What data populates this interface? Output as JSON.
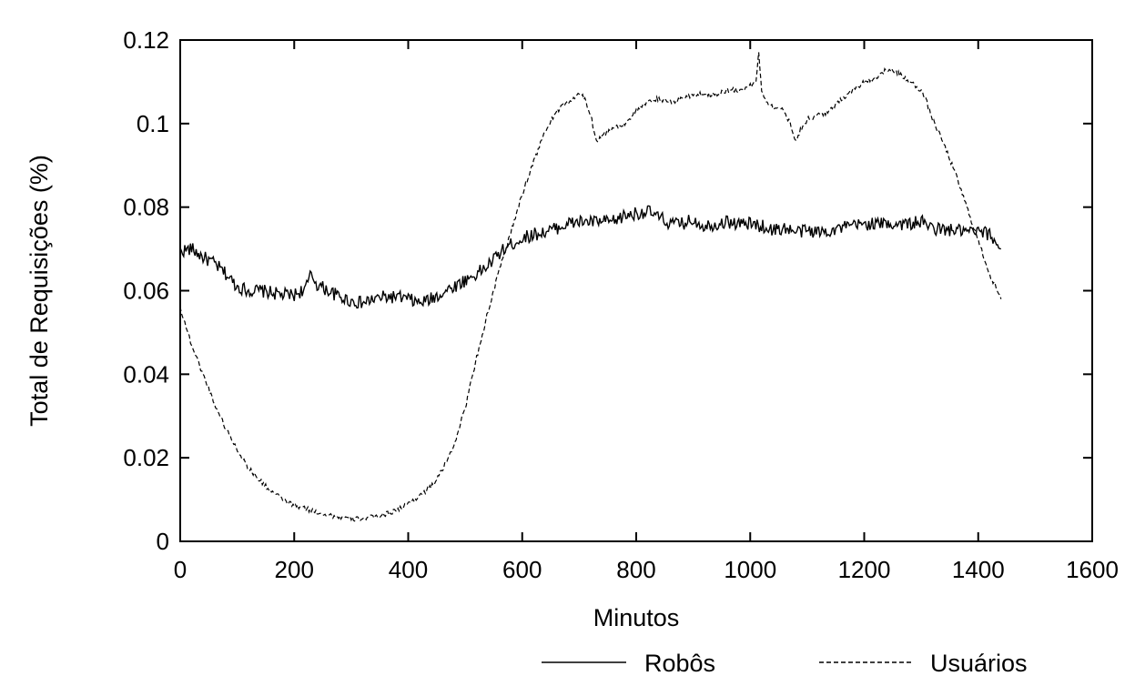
{
  "chart_data": {
    "type": "line",
    "xlabel": "Minutos",
    "ylabel": "Total de Requisições (%)",
    "xlim": [
      0,
      1600
    ],
    "ylim": [
      0,
      0.12
    ],
    "x_ticks": [
      0,
      200,
      400,
      600,
      800,
      1000,
      1200,
      1400,
      1600
    ],
    "x_tick_labels": [
      "0",
      "200",
      "400",
      "600",
      "800",
      "1000",
      "1200",
      "1400",
      "1600"
    ],
    "y_ticks": [
      0,
      0.02,
      0.04,
      0.06,
      0.08,
      0.1,
      0.12
    ],
    "y_tick_labels": [
      "0",
      "0.02",
      "0.04",
      "0.06",
      "0.08",
      "0.1",
      "0.12"
    ],
    "grid": false,
    "legend_position": "bottom",
    "series": [
      {
        "name": "Robôs",
        "style": "solid",
        "color": "#000000",
        "x": [
          0,
          20,
          40,
          60,
          80,
          100,
          120,
          140,
          160,
          180,
          200,
          220,
          230,
          240,
          260,
          280,
          300,
          320,
          340,
          360,
          380,
          400,
          420,
          440,
          460,
          480,
          500,
          520,
          540,
          560,
          580,
          600,
          620,
          640,
          660,
          680,
          700,
          720,
          740,
          760,
          780,
          800,
          820,
          840,
          860,
          880,
          900,
          920,
          940,
          960,
          980,
          1000,
          1020,
          1040,
          1060,
          1080,
          1100,
          1120,
          1140,
          1160,
          1180,
          1200,
          1220,
          1240,
          1260,
          1280,
          1300,
          1320,
          1340,
          1360,
          1380,
          1400,
          1420,
          1440
        ],
        "values": [
          0.0695,
          0.07,
          0.068,
          0.0665,
          0.064,
          0.061,
          0.06,
          0.06,
          0.0595,
          0.059,
          0.059,
          0.0605,
          0.064,
          0.0615,
          0.06,
          0.0585,
          0.0575,
          0.057,
          0.058,
          0.0585,
          0.0585,
          0.058,
          0.057,
          0.058,
          0.0595,
          0.061,
          0.0625,
          0.064,
          0.066,
          0.069,
          0.071,
          0.0725,
          0.0735,
          0.074,
          0.075,
          0.076,
          0.0765,
          0.0765,
          0.0765,
          0.0765,
          0.078,
          0.0785,
          0.079,
          0.0775,
          0.076,
          0.076,
          0.077,
          0.0755,
          0.076,
          0.0765,
          0.076,
          0.076,
          0.0755,
          0.0745,
          0.075,
          0.074,
          0.0745,
          0.074,
          0.0745,
          0.075,
          0.0755,
          0.076,
          0.076,
          0.076,
          0.076,
          0.076,
          0.0765,
          0.075,
          0.0745,
          0.0745,
          0.074,
          0.074,
          0.0735,
          0.07
        ]
      },
      {
        "name": "Usuários",
        "style": "dashed",
        "color": "#000000",
        "x": [
          0,
          20,
          40,
          60,
          80,
          100,
          120,
          140,
          160,
          180,
          200,
          220,
          240,
          260,
          280,
          300,
          320,
          340,
          360,
          380,
          400,
          420,
          440,
          460,
          480,
          500,
          520,
          540,
          560,
          580,
          600,
          620,
          640,
          660,
          680,
          700,
          710,
          720,
          730,
          740,
          760,
          780,
          800,
          820,
          840,
          860,
          880,
          900,
          920,
          940,
          960,
          980,
          1000,
          1010,
          1015,
          1020,
          1030,
          1040,
          1060,
          1070,
          1080,
          1090,
          1100,
          1120,
          1140,
          1160,
          1180,
          1200,
          1220,
          1240,
          1260,
          1280,
          1300,
          1310,
          1320,
          1340,
          1360,
          1380,
          1400,
          1420,
          1440
        ],
        "values": [
          0.056,
          0.047,
          0.04,
          0.033,
          0.027,
          0.022,
          0.0175,
          0.0145,
          0.012,
          0.01,
          0.0085,
          0.0078,
          0.007,
          0.0063,
          0.0058,
          0.0053,
          0.0055,
          0.0058,
          0.0065,
          0.0075,
          0.009,
          0.011,
          0.013,
          0.017,
          0.023,
          0.032,
          0.044,
          0.055,
          0.065,
          0.074,
          0.083,
          0.091,
          0.098,
          0.103,
          0.105,
          0.107,
          0.106,
          0.102,
          0.096,
          0.097,
          0.099,
          0.1,
          0.103,
          0.105,
          0.106,
          0.105,
          0.106,
          0.107,
          0.107,
          0.107,
          0.108,
          0.108,
          0.109,
          0.11,
          0.117,
          0.108,
          0.105,
          0.104,
          0.103,
          0.1,
          0.096,
          0.099,
          0.101,
          0.102,
          0.103,
          0.106,
          0.108,
          0.11,
          0.111,
          0.113,
          0.112,
          0.11,
          0.108,
          0.105,
          0.101,
          0.095,
          0.088,
          0.08,
          0.072,
          0.064,
          0.058
        ]
      }
    ]
  }
}
